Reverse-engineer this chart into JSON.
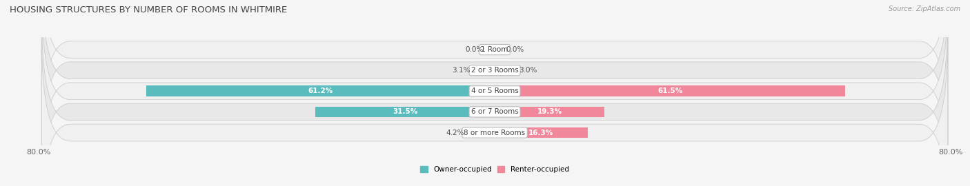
{
  "title": "HOUSING STRUCTURES BY NUMBER OF ROOMS IN WHITMIRE",
  "source": "Source: ZipAtlas.com",
  "categories": [
    "1 Room",
    "2 or 3 Rooms",
    "4 or 5 Rooms",
    "6 or 7 Rooms",
    "8 or more Rooms"
  ],
  "owner_values": [
    0.0,
    3.1,
    61.2,
    31.5,
    4.2
  ],
  "renter_values": [
    0.0,
    3.0,
    61.5,
    19.3,
    16.3
  ],
  "owner_color": "#5bbcbd",
  "renter_color": "#f0879a",
  "owner_label": "Owner-occupied",
  "renter_label": "Renter-occupied",
  "axis_min": -80.0,
  "axis_max": 80.0,
  "bar_height": 0.52,
  "title_fontsize": 9.5,
  "source_fontsize": 7,
  "label_fontsize": 7.5,
  "category_fontsize": 7.5,
  "tick_fontsize": 8,
  "row_colors": [
    "#f0f0f0",
    "#e8e8e8",
    "#f0f0f0",
    "#e8e8e8",
    "#f0f0f0"
  ],
  "row_border_color": "#cccccc",
  "fig_bg": "#f5f5f5"
}
